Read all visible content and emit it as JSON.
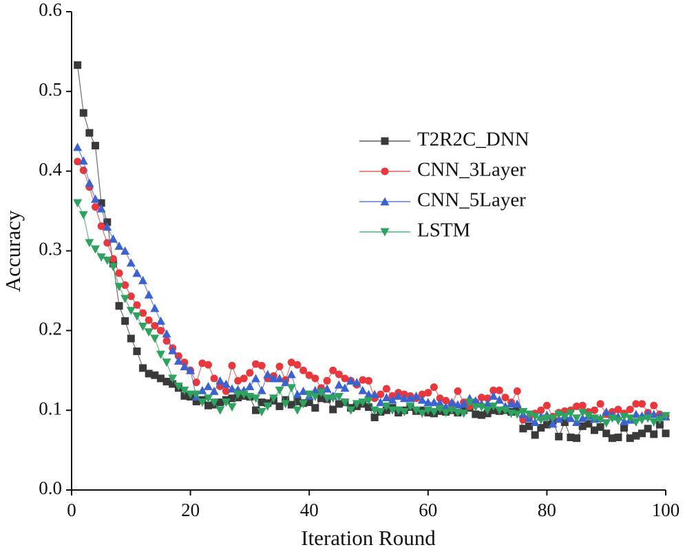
{
  "chart_data": {
    "type": "line",
    "x_label": "Iteration Round",
    "y_label": "Accuracy",
    "x": [
      1,
      2,
      3,
      4,
      5,
      6,
      7,
      8,
      9,
      10,
      11,
      12,
      13,
      14,
      15,
      16,
      17,
      18,
      19,
      20,
      21,
      22,
      23,
      24,
      25,
      26,
      27,
      28,
      29,
      30,
      31,
      32,
      33,
      34,
      35,
      36,
      37,
      38,
      39,
      40,
      41,
      42,
      43,
      44,
      45,
      46,
      47,
      48,
      49,
      50,
      51,
      52,
      53,
      54,
      55,
      56,
      57,
      58,
      59,
      60,
      61,
      62,
      63,
      64,
      65,
      66,
      67,
      68,
      69,
      70,
      71,
      72,
      73,
      74,
      75,
      76,
      77,
      78,
      79,
      80,
      81,
      82,
      83,
      84,
      85,
      86,
      87,
      88,
      89,
      90,
      91,
      92,
      93,
      94,
      95,
      96,
      97,
      98,
      99,
      100
    ],
    "xlim": [
      0,
      100
    ],
    "xticks": [
      0,
      20,
      40,
      60,
      80,
      100
    ],
    "ylim": [
      0,
      0.6
    ],
    "yticks": [
      {
        "value": 0,
        "label": "0.0"
      },
      0.1,
      0.2,
      0.3,
      0.4,
      0.5,
      0.6
    ],
    "legend_position": "right",
    "series": [
      {
        "name": "T2R2C_DNN",
        "color": "#3a3a3a",
        "marker": "square",
        "values": [
          0.533,
          0.473,
          0.448,
          0.432,
          0.36,
          0.336,
          0.284,
          0.231,
          0.212,
          0.19,
          0.174,
          0.153,
          0.146,
          0.144,
          0.14,
          0.136,
          0.133,
          0.128,
          0.118,
          0.117,
          0.111,
          0.113,
          0.106,
          0.107,
          0.11,
          0.113,
          0.115,
          0.116,
          0.118,
          0.117,
          0.1,
          0.11,
          0.109,
          0.112,
          0.105,
          0.113,
          0.107,
          0.111,
          0.109,
          0.11,
          0.103,
          0.115,
          0.114,
          0.101,
          0.108,
          0.11,
          0.103,
          0.105,
          0.108,
          0.104,
          0.091,
          0.098,
          0.1,
          0.103,
          0.097,
          0.1,
          0.104,
          0.099,
          0.1,
          0.097,
          0.096,
          0.099,
          0.098,
          0.1,
          0.097,
          0.1,
          0.103,
          0.095,
          0.094,
          0.096,
          0.1,
          0.099,
          0.1,
          0.098,
          0.101,
          0.077,
          0.08,
          0.069,
          0.078,
          0.082,
          0.087,
          0.067,
          0.085,
          0.066,
          0.065,
          0.08,
          0.083,
          0.075,
          0.079,
          0.071,
          0.065,
          0.066,
          0.078,
          0.065,
          0.068,
          0.071,
          0.077,
          0.07,
          0.082,
          0.071
        ]
      },
      {
        "name": "CNN_3Layer",
        "color": "#e8383d",
        "marker": "circle",
        "values": [
          0.412,
          0.401,
          0.38,
          0.355,
          0.331,
          0.31,
          0.29,
          0.272,
          0.257,
          0.243,
          0.232,
          0.222,
          0.213,
          0.206,
          0.2,
          0.187,
          0.178,
          0.168,
          0.16,
          0.15,
          0.135,
          0.159,
          0.157,
          0.14,
          0.13,
          0.124,
          0.156,
          0.137,
          0.14,
          0.147,
          0.158,
          0.156,
          0.14,
          0.143,
          0.155,
          0.138,
          0.16,
          0.157,
          0.15,
          0.144,
          0.14,
          0.128,
          0.137,
          0.15,
          0.145,
          0.14,
          0.137,
          0.132,
          0.138,
          0.137,
          0.115,
          0.12,
          0.127,
          0.118,
          0.122,
          0.12,
          0.118,
          0.115,
          0.12,
          0.122,
          0.129,
          0.115,
          0.112,
          0.108,
          0.124,
          0.11,
          0.105,
          0.11,
          0.116,
          0.115,
          0.125,
          0.125,
          0.116,
          0.11,
          0.124,
          0.088,
          0.09,
          0.096,
          0.1,
          0.106,
          0.092,
          0.097,
          0.099,
          0.1,
          0.105,
          0.106,
          0.098,
          0.1,
          0.108,
          0.095,
          0.098,
          0.101,
          0.096,
          0.101,
          0.108,
          0.108,
          0.097,
          0.106,
          0.095,
          0.093
        ]
      },
      {
        "name": "CNN_5Layer",
        "color": "#3b62cf",
        "marker": "triangle-up",
        "values": [
          0.43,
          0.413,
          0.385,
          0.365,
          0.353,
          0.33,
          0.315,
          0.306,
          0.3,
          0.285,
          0.272,
          0.263,
          0.245,
          0.228,
          0.212,
          0.196,
          0.175,
          0.162,
          0.155,
          0.15,
          0.117,
          0.125,
          0.13,
          0.124,
          0.137,
          0.133,
          0.127,
          0.126,
          0.125,
          0.13,
          0.14,
          0.125,
          0.145,
          0.14,
          0.14,
          0.135,
          0.145,
          0.12,
          0.124,
          0.118,
          0.125,
          0.125,
          0.127,
          0.118,
          0.132,
          0.128,
          0.137,
          0.135,
          0.125,
          0.12,
          0.12,
          0.11,
          0.116,
          0.113,
          0.118,
          0.115,
          0.115,
          0.118,
          0.113,
          0.11,
          0.11,
          0.109,
          0.104,
          0.11,
          0.107,
          0.108,
          0.115,
          0.112,
          0.108,
          0.108,
          0.118,
          0.113,
          0.105,
          0.108,
          0.108,
          0.095,
          0.09,
          0.085,
          0.092,
          0.094,
          0.083,
          0.089,
          0.093,
          0.09,
          0.085,
          0.09,
          0.093,
          0.089,
          0.09,
          0.098,
          0.094,
          0.092,
          0.086,
          0.088,
          0.095,
          0.093,
          0.096,
          0.095,
          0.093,
          0.092
        ]
      },
      {
        "name": "LSTM",
        "color": "#2ea35f",
        "marker": "triangle-down",
        "values": [
          0.36,
          0.345,
          0.31,
          0.302,
          0.292,
          0.288,
          0.28,
          0.255,
          0.24,
          0.225,
          0.218,
          0.205,
          0.198,
          0.19,
          0.17,
          0.16,
          0.14,
          0.13,
          0.125,
          0.12,
          0.12,
          0.11,
          0.115,
          0.11,
          0.1,
          0.11,
          0.104,
          0.12,
          0.12,
          0.117,
          0.115,
          0.098,
          0.105,
          0.115,
          0.125,
          0.108,
          0.128,
          0.1,
          0.108,
          0.12,
          0.117,
          0.122,
          0.115,
          0.115,
          0.117,
          0.11,
          0.1,
          0.108,
          0.11,
          0.112,
          0.1,
          0.098,
          0.105,
          0.1,
          0.1,
          0.098,
          0.105,
          0.1,
          0.096,
          0.1,
          0.098,
          0.102,
          0.097,
          0.1,
          0.097,
          0.096,
          0.11,
          0.104,
          0.104,
          0.1,
          0.105,
          0.1,
          0.1,
          0.096,
          0.095,
          0.098,
          0.095,
          0.092,
          0.088,
          0.09,
          0.09,
          0.095,
          0.092,
          0.096,
          0.09,
          0.097,
          0.093,
          0.09,
          0.088,
          0.084,
          0.09,
          0.087,
          0.092,
          0.09,
          0.085,
          0.088,
          0.09,
          0.085,
          0.088,
          0.093
        ]
      }
    ]
  }
}
